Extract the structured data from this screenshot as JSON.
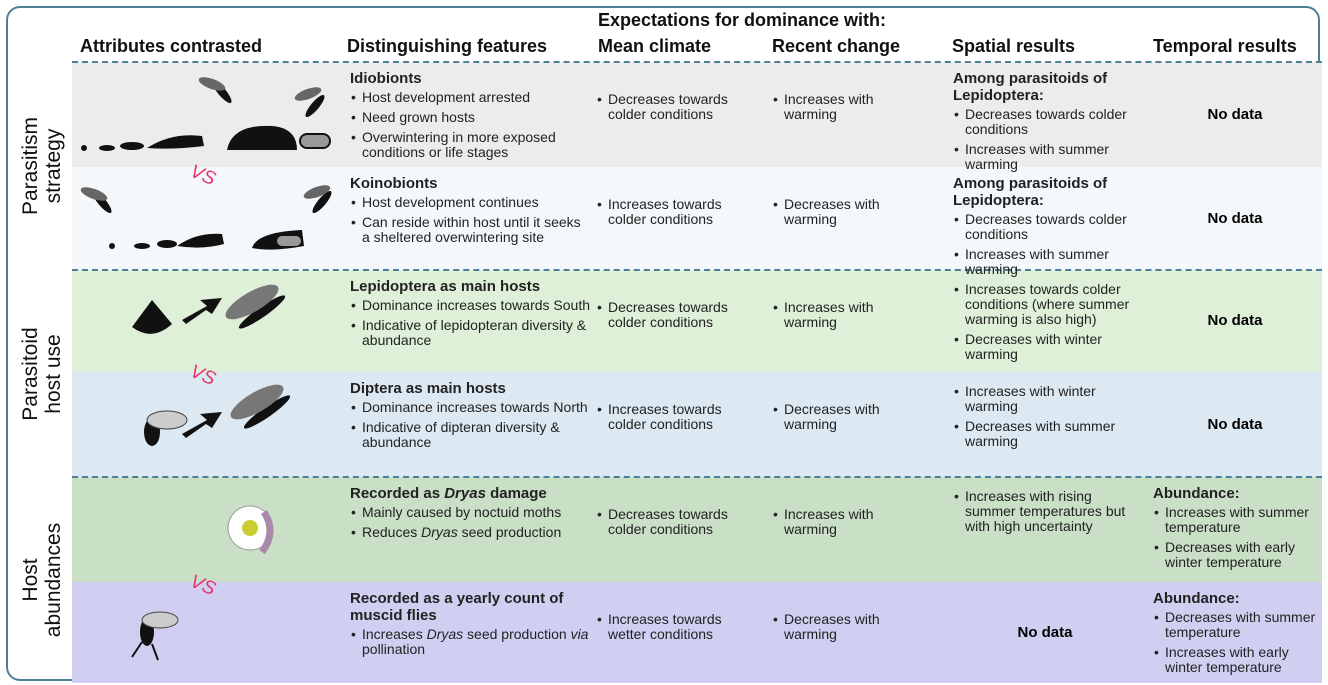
{
  "header": {
    "group_title": "Expectations for dominance with:",
    "columns": [
      "Attributes contrasted",
      "Distinguishing features",
      "Mean climate",
      "Recent change",
      "Spatial results",
      "Temporal results"
    ]
  },
  "vs_label": "VS",
  "groups": [
    {
      "label": [
        "Parasitism",
        "strategy"
      ],
      "rows": [
        {
          "title": "Idiobionts",
          "features": [
            "Host development arrested",
            "Need grown hosts",
            "Overwintering in more exposed conditions or life stages"
          ],
          "mean_climate": [
            "Decreases towards colder conditions"
          ],
          "recent_change": [
            "Increases with warming"
          ],
          "spatial": {
            "heading": "Among parasitoids of Lepidoptera:",
            "items": [
              "Decreases towards colder conditions",
              "Increases with summer warming"
            ]
          },
          "temporal": "No data"
        },
        {
          "title": "Koinobionts",
          "features": [
            "Host development continues",
            "Can reside within host until it seeks a sheltered overwintering site"
          ],
          "mean_climate": [
            "Increases towards colder conditions"
          ],
          "recent_change": [
            "Decreases with warming"
          ],
          "spatial": {
            "heading": "Among parasitoids of Lepidoptera:",
            "items": [
              "Decreases towards colder conditions",
              "Increases with summer warming"
            ]
          },
          "temporal": "No data"
        }
      ]
    },
    {
      "label": [
        "Parasitoid",
        "host use"
      ],
      "rows": [
        {
          "title": "Lepidoptera as main hosts",
          "features": [
            "Dominance increases towards South",
            "Indicative of lepidopteran diversity & abundance"
          ],
          "mean_climate": [
            "Decreases towards colder conditions"
          ],
          "recent_change": [
            "Increases with warming"
          ],
          "spatial": {
            "items": [
              "Increases towards colder conditions (where summer warming is also high)",
              "Decreases with winter warming"
            ]
          },
          "temporal": "No data"
        },
        {
          "title": "Diptera as main hosts",
          "features": [
            "Dominance increases towards North",
            "Indicative of dipteran diversity & abundance"
          ],
          "mean_climate": [
            "Increases towards colder conditions"
          ],
          "recent_change": [
            "Decreases with warming"
          ],
          "spatial": {
            "items": [
              "Increases with winter warming",
              "Decreases with summer warming"
            ]
          },
          "temporal": "No data"
        }
      ]
    },
    {
      "label": [
        "Host",
        "abundances"
      ],
      "rows": [
        {
          "title": [
            {
              "text": "Recorded as "
            },
            {
              "text": "Dryas",
              "italic": true
            },
            {
              "text": " damage"
            }
          ],
          "features": [
            "Mainly caused by noctuid moths",
            [
              {
                "text": "Reduces "
              },
              {
                "text": "Dryas",
                "italic": true
              },
              {
                "text": " seed production"
              }
            ]
          ],
          "mean_climate": [
            "Decreases towards colder conditions"
          ],
          "recent_change": [
            "Increases with warming"
          ],
          "spatial": {
            "items": [
              "Increases with rising summer temperatures but with high uncertainty"
            ]
          },
          "temporal": {
            "heading": "Abundance:",
            "items": [
              "Increases with summer temperature",
              "Decreases with early winter temperature"
            ]
          }
        },
        {
          "title": "Recorded as a yearly count of muscid flies",
          "features": [
            [
              {
                "text": "Increases "
              },
              {
                "text": "Dryas",
                "italic": true
              },
              {
                "text": " seed production "
              },
              {
                "text": "via",
                "italic": true
              },
              {
                "text": " pollination"
              }
            ]
          ],
          "mean_climate": [
            "Increases towards wetter conditions"
          ],
          "recent_change": [
            "Decreases with warming"
          ],
          "spatial": "No data",
          "temporal": {
            "heading": "Abundance:",
            "items": [
              "Decreases with summer temperature",
              "Increases with early winter temperature"
            ]
          }
        }
      ]
    }
  ]
}
